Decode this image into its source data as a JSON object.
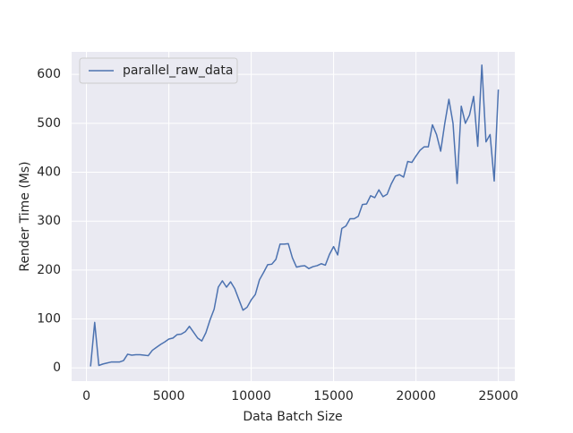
{
  "chart_data": {
    "type": "line",
    "xlabel": "Data Batch Size",
    "ylabel": "Render Time (Ms)",
    "x": [
      250,
      500,
      750,
      1000,
      1250,
      1500,
      1750,
      2000,
      2250,
      2500,
      2750,
      3000,
      3250,
      3500,
      3750,
      4000,
      4250,
      4500,
      4750,
      5000,
      5250,
      5500,
      5750,
      6000,
      6250,
      6500,
      6750,
      7000,
      7250,
      7500,
      7750,
      8000,
      8250,
      8500,
      8750,
      9000,
      9250,
      9500,
      9750,
      10000,
      10250,
      10500,
      10750,
      11000,
      11250,
      11500,
      11750,
      12000,
      12250,
      12500,
      12750,
      13000,
      13250,
      13500,
      13750,
      14000,
      14250,
      14500,
      14750,
      15000,
      15250,
      15500,
      15750,
      16000,
      16250,
      16500,
      16750,
      17000,
      17250,
      17500,
      17750,
      18000,
      18250,
      18500,
      18750,
      19000,
      19250,
      19500,
      19750,
      20000,
      20250,
      20500,
      20750,
      21000,
      21250,
      21500,
      21750,
      22000,
      22250,
      22500,
      22750,
      23000,
      23250,
      23500,
      23750,
      24000,
      24250,
      24500,
      24750,
      25000
    ],
    "series": [
      {
        "name": "parallel_raw_data",
        "color": "#4c72b0",
        "values": [
          3,
          93,
          5,
          8,
          10,
          12,
          12,
          12,
          15,
          28,
          26,
          27,
          27,
          26,
          25,
          36,
          42,
          48,
          53,
          59,
          61,
          68,
          69,
          74,
          85,
          73,
          61,
          55,
          72,
          98,
          120,
          165,
          178,
          165,
          176,
          162,
          140,
          118,
          124,
          139,
          150,
          180,
          195,
          211,
          212,
          222,
          253,
          253,
          254,
          225,
          206,
          208,
          209,
          203,
          207,
          209,
          213,
          210,
          232,
          248,
          231,
          285,
          290,
          305,
          305,
          310,
          334,
          335,
          352,
          348,
          364,
          350,
          355,
          376,
          392,
          395,
          390,
          422,
          420,
          433,
          445,
          452,
          452,
          497,
          477,
          443,
          500,
          549,
          500,
          377,
          535,
          500,
          517,
          555,
          453,
          619,
          462,
          477,
          382,
          569
        ]
      }
    ],
    "xlim": [
      -900,
      26000
    ],
    "ylim": [
      -27,
      646
    ],
    "xticks": [
      0,
      5000,
      10000,
      15000,
      20000,
      25000
    ],
    "yticks": [
      0,
      100,
      200,
      300,
      400,
      500,
      600
    ],
    "grid": true,
    "legend": "upper-left"
  }
}
